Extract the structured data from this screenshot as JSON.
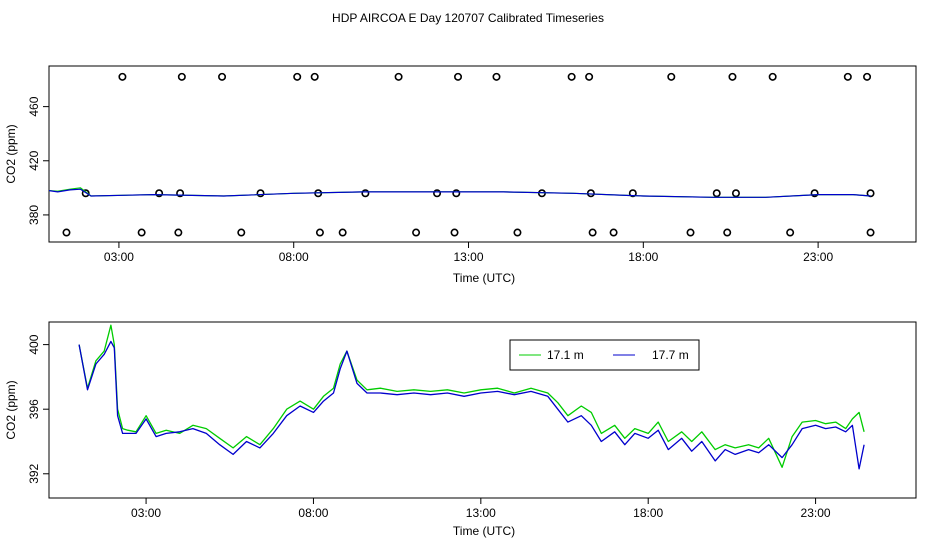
{
  "title": "HDP AIRCOA E  Day 120707  Calibrated Timeseries",
  "colors": {
    "green": "#00cc00",
    "blue": "#0000cc",
    "axis": "#000000"
  },
  "chart_data": [
    {
      "type": "line",
      "panel": "top",
      "xlabel": "Time (UTC)",
      "ylabel": "CO2 (ppm)",
      "xlim": [
        0,
        24.8
      ],
      "ylim": [
        360,
        490
      ],
      "xticks": [
        2,
        7,
        12,
        17,
        22
      ],
      "xtick_labels": [
        "03:00",
        "08:00",
        "13:00",
        "18:00",
        "23:00"
      ],
      "yticks": [
        380,
        420,
        460
      ],
      "ytick_labels": [
        "380",
        "420",
        "460"
      ],
      "series": [
        {
          "name": "17.1 m",
          "color": "#00cc00",
          "x": [
            0,
            0.25,
            0.6,
            0.9,
            1.2,
            3,
            5,
            7,
            9,
            11,
            13,
            15,
            17,
            19,
            20.5,
            22,
            23,
            23.5
          ],
          "y": [
            398,
            397.5,
            399,
            400,
            394,
            395,
            394,
            396,
            397,
            397,
            397,
            396,
            394,
            393,
            393,
            395,
            395,
            394
          ]
        },
        {
          "name": "17.7 m",
          "color": "#0000cc",
          "x": [
            0,
            0.25,
            0.6,
            0.9,
            1.2,
            3,
            5,
            7,
            9,
            11,
            13,
            15,
            17,
            19,
            20.5,
            22,
            23,
            23.5
          ],
          "y": [
            398,
            397,
            398.5,
            399,
            394,
            395,
            394,
            396,
            397,
            397,
            397,
            396,
            394,
            393,
            393,
            395,
            395,
            394
          ]
        }
      ],
      "points_high_y": 482,
      "points_high_x": [
        2.1,
        3.8,
        4.95,
        7.1,
        7.6,
        10,
        11.7,
        12.8,
        14.95,
        15.45,
        17.8,
        19.55,
        20.7,
        22.85,
        23.4
      ],
      "points_mid_y": 396,
      "points_mid_x": [
        1.05,
        3.15,
        3.75,
        6.05,
        7.7,
        9.05,
        11.1,
        11.65,
        14.1,
        15.5,
        16.7,
        19.1,
        19.65,
        21.9,
        23.5
      ],
      "points_low_y": 367,
      "points_low_x": [
        0.5,
        2.65,
        3.7,
        5.5,
        7.75,
        8.4,
        10.5,
        11.6,
        13.4,
        15.55,
        16.15,
        18.35,
        19.4,
        21.2,
        23.5
      ]
    },
    {
      "type": "line",
      "panel": "bottom",
      "xlabel": "Time (UTC)",
      "ylabel": "CO2 (ppm)",
      "xlim": [
        -0.9,
        25.0
      ],
      "ylim": [
        390.5,
        401.4
      ],
      "xticks": [
        2,
        7,
        12,
        17,
        22
      ],
      "xtick_labels": [
        "03:00",
        "08:00",
        "13:00",
        "18:00",
        "23:00"
      ],
      "yticks": [
        392,
        396,
        400
      ],
      "ytick_labels": [
        "392",
        "396",
        "400"
      ],
      "legend": {
        "position": "top-right"
      },
      "series": [
        {
          "name": "17.1 m",
          "color": "#00cc00",
          "x": [
            0,
            0.25,
            0.5,
            0.75,
            0.95,
            1.05,
            1.15,
            1.3,
            1.45,
            1.7,
            2,
            2.3,
            2.6,
            3,
            3.4,
            3.8,
            4.2,
            4.6,
            5,
            5.4,
            5.8,
            6.2,
            6.6,
            7,
            7.3,
            7.6,
            7.8,
            8,
            8.3,
            8.6,
            9,
            9.5,
            10,
            10.5,
            11,
            11.5,
            12,
            12.5,
            13,
            13.5,
            14,
            14.3,
            14.6,
            15,
            15.3,
            15.6,
            16,
            16.3,
            16.6,
            17,
            17.3,
            17.6,
            18,
            18.3,
            18.6,
            19,
            19.3,
            19.6,
            20,
            20.3,
            20.6,
            21,
            21.3,
            21.6,
            22,
            22.3,
            22.6,
            22.9,
            23.1,
            23.3,
            23.45
          ],
          "y": [
            400.0,
            397.3,
            399.0,
            399.6,
            401.2,
            400.0,
            396.0,
            394.8,
            394.7,
            394.6,
            395.6,
            394.5,
            394.7,
            394.5,
            395.0,
            394.8,
            394.2,
            393.6,
            394.3,
            393.8,
            394.8,
            396.0,
            396.5,
            396.0,
            396.8,
            397.3,
            398.8,
            399.6,
            397.8,
            397.2,
            397.3,
            397.1,
            397.2,
            397.1,
            397.2,
            397.0,
            397.2,
            397.3,
            397.0,
            397.3,
            397.0,
            396.4,
            395.6,
            396.2,
            395.8,
            394.5,
            395.0,
            394.2,
            394.8,
            394.5,
            395.2,
            394.0,
            394.6,
            394.0,
            394.6,
            393.5,
            393.8,
            393.6,
            393.8,
            393.6,
            394.2,
            392.4,
            394.3,
            395.2,
            395.3,
            395.1,
            395.2,
            394.8,
            395.4,
            395.8,
            394.6
          ]
        },
        {
          "name": "17.7 m",
          "color": "#0000cc",
          "x": [
            0,
            0.25,
            0.5,
            0.75,
            0.95,
            1.05,
            1.15,
            1.3,
            1.45,
            1.7,
            2,
            2.3,
            2.6,
            3,
            3.4,
            3.8,
            4.2,
            4.6,
            5,
            5.4,
            5.8,
            6.2,
            6.6,
            7,
            7.3,
            7.6,
            7.8,
            8,
            8.3,
            8.6,
            9,
            9.5,
            10,
            10.5,
            11,
            11.5,
            12,
            12.5,
            13,
            13.5,
            14,
            14.3,
            14.6,
            15,
            15.3,
            15.6,
            16,
            16.3,
            16.6,
            17,
            17.3,
            17.6,
            18,
            18.3,
            18.6,
            19,
            19.3,
            19.6,
            20,
            20.3,
            20.6,
            21,
            21.3,
            21.6,
            22,
            22.3,
            22.6,
            22.9,
            23.1,
            23.3,
            23.45
          ],
          "y": [
            400.0,
            397.2,
            398.8,
            399.4,
            400.2,
            399.8,
            395.6,
            394.5,
            394.5,
            394.5,
            395.4,
            394.3,
            394.5,
            394.6,
            394.8,
            394.5,
            393.8,
            393.2,
            394.0,
            393.6,
            394.5,
            395.6,
            396.2,
            395.8,
            396.5,
            397.0,
            398.5,
            399.6,
            397.6,
            397.0,
            397.0,
            396.9,
            397.0,
            396.9,
            397.0,
            396.8,
            397.0,
            397.1,
            396.9,
            397.1,
            396.8,
            396.0,
            395.2,
            395.6,
            395.0,
            394.0,
            394.6,
            393.8,
            394.5,
            394.2,
            394.7,
            393.5,
            394.2,
            393.4,
            394.0,
            392.8,
            393.5,
            393.2,
            393.5,
            393.3,
            393.8,
            393.0,
            393.8,
            394.8,
            395.0,
            394.8,
            394.9,
            394.6,
            395.0,
            392.3,
            393.8
          ]
        }
      ]
    }
  ]
}
